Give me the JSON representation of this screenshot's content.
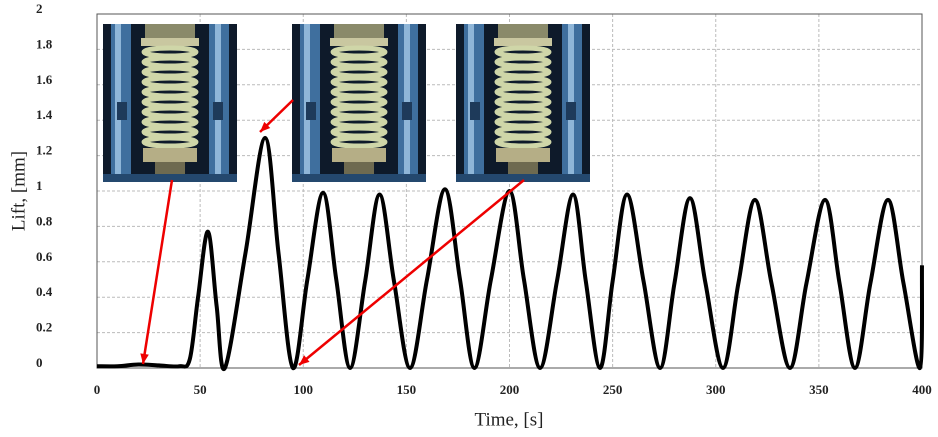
{
  "chart_data": {
    "type": "line",
    "x_label": "Time, [s]",
    "y_label": "Lift, [mm]",
    "xlim": [
      0,
      400
    ],
    "xticks": [
      0,
      50,
      100,
      150,
      200,
      250,
      300,
      350,
      400
    ],
    "ylim": [
      0,
      2
    ],
    "yticks": [
      0,
      0.2,
      0.4,
      0.6,
      0.8,
      1,
      1.2,
      1.4,
      1.6,
      1.8,
      2
    ],
    "grid": true,
    "series": [
      {
        "color": "#000000",
        "x": [
          0,
          10,
          20,
          30,
          40,
          45,
          49,
          53.8,
          58,
          62,
          72,
          81.5,
          88,
          95,
          102,
          109.6,
          116,
          122.7,
          130,
          137,
          144,
          151.8,
          160,
          168.7,
          176,
          183,
          191,
          200,
          207,
          214.8,
          223,
          230.8,
          237,
          243.9,
          250,
          257,
          265,
          273,
          280,
          287.5,
          295,
          303.5,
          311,
          319,
          327,
          336,
          344,
          353,
          360,
          367.5,
          375,
          383.5,
          391,
          399,
          400
        ],
        "values": [
          0.01,
          0.01,
          0.02,
          0.015,
          0.01,
          0.05,
          0.4,
          0.77,
          0.35,
          0,
          0.65,
          1.3,
          0.65,
          0,
          0.5,
          0.99,
          0.5,
          0,
          0.49,
          0.98,
          0.49,
          0,
          0.5,
          1.01,
          0.5,
          0,
          0.5,
          1.0,
          0.5,
          0,
          0.49,
          0.98,
          0.49,
          0,
          0.49,
          0.98,
          0.49,
          0,
          0.48,
          0.96,
          0.48,
          0,
          0.48,
          0.95,
          0.48,
          0,
          0.48,
          0.95,
          0.48,
          0,
          0.48,
          0.95,
          0.48,
          0,
          0.58
        ]
      }
    ]
  }
}
